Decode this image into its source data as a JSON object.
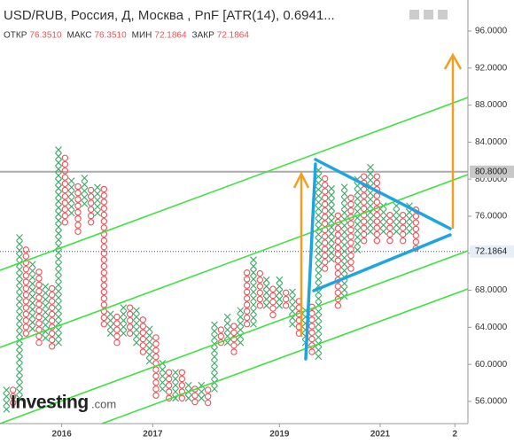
{
  "chart_data": {
    "type": "pnf",
    "title": "USD/RUB, Россия, Д, Москва , PnF [ATR(14), 0.6941...",
    "ohlc": [
      {
        "name": "ОТКР",
        "value": "76.3510"
      },
      {
        "name": "МАКС",
        "value": "76.3510"
      },
      {
        "name": "МИН",
        "value": "72.1864"
      },
      {
        "name": "ЗАКР",
        "value": "72.1864"
      }
    ],
    "box_size": 0.6941,
    "x_color": "#3aa865",
    "o_color": "#e8535a",
    "columns": [
      {
        "type": "X",
        "low": 54.8,
        "high": 57.0
      },
      {
        "type": "O",
        "low": 55.5,
        "high": 56.9
      },
      {
        "type": "X",
        "low": 56.0,
        "high": 73.5
      },
      {
        "type": "O",
        "low": 63.0,
        "high": 72.5
      },
      {
        "type": "X",
        "low": 63.5,
        "high": 71.0
      },
      {
        "type": "O",
        "low": 62.0,
        "high": 70.0
      },
      {
        "type": "X",
        "low": 62.5,
        "high": 68.5
      },
      {
        "type": "O",
        "low": 61.6,
        "high": 68.2
      },
      {
        "type": "X",
        "low": 62.0,
        "high": 83.0
      },
      {
        "type": "O",
        "low": 75.0,
        "high": 82.0
      },
      {
        "type": "X",
        "low": 76.0,
        "high": 80.0
      },
      {
        "type": "O",
        "low": 74.0,
        "high": 79.0
      },
      {
        "type": "X",
        "low": 77.0,
        "high": 80.0
      },
      {
        "type": "O",
        "low": 75.0,
        "high": 79.0
      },
      {
        "type": "X",
        "low": 76.0,
        "high": 79.0
      },
      {
        "type": "O",
        "low": 64.0,
        "high": 79.0
      },
      {
        "type": "X",
        "low": 63.0,
        "high": 65.5
      },
      {
        "type": "O",
        "low": 62.0,
        "high": 65.0
      },
      {
        "type": "X",
        "low": 63.0,
        "high": 66.0
      },
      {
        "type": "O",
        "low": 63.0,
        "high": 66.0
      },
      {
        "type": "X",
        "low": 62.0,
        "high": 66.0
      },
      {
        "type": "O",
        "low": 61.0,
        "high": 65.0
      },
      {
        "type": "X",
        "low": 60.0,
        "high": 64.0
      },
      {
        "type": "O",
        "low": 56.3,
        "high": 63.0
      },
      {
        "type": "X",
        "low": 57.0,
        "high": 60.0
      },
      {
        "type": "O",
        "low": 56.0,
        "high": 59.0
      },
      {
        "type": "X",
        "low": 56.0,
        "high": 59.0
      },
      {
        "type": "O",
        "low": 56.0,
        "high": 59.0
      },
      {
        "type": "X",
        "low": 56.0,
        "high": 58.0
      },
      {
        "type": "O",
        "low": 55.6,
        "high": 57.0
      },
      {
        "type": "X",
        "low": 56.0,
        "high": 58.0
      },
      {
        "type": "O",
        "low": 55.5,
        "high": 57.0
      },
      {
        "type": "X",
        "low": 57.0,
        "high": 64.0
      },
      {
        "type": "O",
        "low": 62.0,
        "high": 64.0
      },
      {
        "type": "X",
        "low": 62.0,
        "high": 65.0
      },
      {
        "type": "O",
        "low": 61.0,
        "high": 64.0
      },
      {
        "type": "X",
        "low": 62.0,
        "high": 66.0
      },
      {
        "type": "O",
        "low": 64.0,
        "high": 70.0
      },
      {
        "type": "X",
        "low": 64.0,
        "high": 71.5
      },
      {
        "type": "O",
        "low": 66.0,
        "high": 70.0
      },
      {
        "type": "X",
        "low": 66.0,
        "high": 69.0
      },
      {
        "type": "O",
        "low": 65.0,
        "high": 68.0
      },
      {
        "type": "X",
        "low": 66.0,
        "high": 69.0
      },
      {
        "type": "O",
        "low": 66.0,
        "high": 68.0
      },
      {
        "type": "X",
        "low": 64.0,
        "high": 68.0
      },
      {
        "type": "O",
        "low": 63.0,
        "high": 67.0
      },
      {
        "type": "X",
        "low": 62.0,
        "high": 66.0
      },
      {
        "type": "O",
        "low": 61.0,
        "high": 66.0
      },
      {
        "type": "X",
        "low": 60.5,
        "high": 81.2
      },
      {
        "type": "O",
        "low": 70.0,
        "high": 80.0
      },
      {
        "type": "X",
        "low": 71.0,
        "high": 79.0
      },
      {
        "type": "O",
        "low": 66.0,
        "high": 76.0
      },
      {
        "type": "X",
        "low": 67.0,
        "high": 79.0
      },
      {
        "type": "O",
        "low": 70.0,
        "high": 78.0
      },
      {
        "type": "X",
        "low": 72.0,
        "high": 80.0
      },
      {
        "type": "O",
        "low": 73.0,
        "high": 80.0
      },
      {
        "type": "X",
        "low": 74.0,
        "high": 81.0
      },
      {
        "type": "O",
        "low": 73.0,
        "high": 80.0
      },
      {
        "type": "X",
        "low": 74.0,
        "high": 77.0
      },
      {
        "type": "O",
        "low": 73.0,
        "high": 76.0
      },
      {
        "type": "X",
        "low": 74.0,
        "high": 77.0
      },
      {
        "type": "O",
        "low": 73.0,
        "high": 76.0
      },
      {
        "type": "X",
        "low": 74.0,
        "high": 77.0
      },
      {
        "type": "O",
        "low": 72.1864,
        "high": 76.4
      }
    ],
    "xlim": [
      -1,
      71
    ],
    "xticks": [
      {
        "value": 8.5,
        "label": "2016"
      },
      {
        "value": 22.5,
        "label": "2017"
      },
      {
        "value": 42,
        "label": "2019"
      },
      {
        "value": 57.5,
        "label": "2021"
      },
      {
        "value": 69,
        "label": "2"
      }
    ],
    "ylim": [
      53.6,
      99.35
    ],
    "yticks": [
      {
        "value": 56,
        "label": "56.0000"
      },
      {
        "value": 60,
        "label": "60.0000"
      },
      {
        "value": 64,
        "label": "64.0000"
      },
      {
        "value": 68,
        "label": "68.0000"
      },
      {
        "value": 72,
        "label": "72.0000"
      },
      {
        "value": 76,
        "label": "76.0000"
      },
      {
        "value": 80,
        "label": "80.0000"
      },
      {
        "value": 84,
        "label": "84.0000"
      },
      {
        "value": 88,
        "label": "88.0000"
      },
      {
        "value": 92,
        "label": "92.0000"
      },
      {
        "value": 96,
        "label": "96.0000"
      }
    ],
    "price_labels": [
      {
        "value": 80.8,
        "label": "80.8000",
        "style": "solid"
      },
      {
        "value": 72.1864,
        "label": "72.1864",
        "style": "dotted"
      }
    ],
    "logo": {
      "name": "Investing",
      "suffix": ".com"
    }
  }
}
